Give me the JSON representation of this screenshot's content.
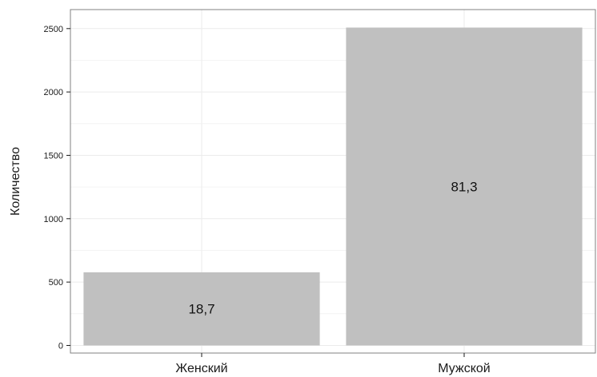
{
  "chart_data": {
    "type": "bar",
    "title": "",
    "xlabel": "",
    "ylabel": "Количество",
    "categories": [
      "Женский",
      "Мужской"
    ],
    "values": [
      577,
      2508
    ],
    "data_labels": [
      "18,7",
      "81,3"
    ],
    "y_ticks": [
      0,
      500,
      1000,
      1500,
      2000,
      2500
    ],
    "ylim": [
      -60,
      2650
    ],
    "grid": true,
    "legend": "none",
    "colors": {
      "bar": "#c0c0c0",
      "grid": "#ebebeb",
      "panel_border": "#808080",
      "text": "#1a1a1a"
    }
  }
}
